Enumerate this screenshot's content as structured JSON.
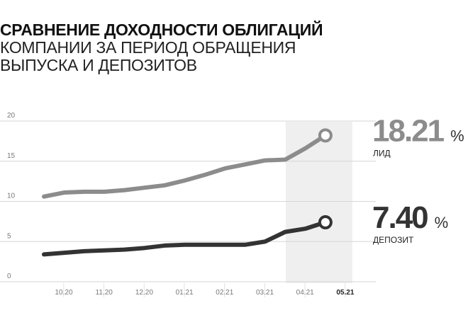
{
  "title": {
    "line1": "СРАВНЕНИЕ ДОХОДНОСТИ ОБЛИГАЦИЙ",
    "line2": "КОМПАНИИ ЗА ПЕРИОД ОБРАЩЕНИЯ",
    "line3": "ВЫПУСКА И ДЕПОЗИТОВ"
  },
  "chart_data": {
    "type": "line",
    "categories": [
      "10.20",
      "11.20",
      "12.20",
      "01.21",
      "02.21",
      "03.21",
      "04.21",
      "05.21"
    ],
    "highlight_category": "05.21",
    "ylim": [
      0,
      20
    ],
    "yticks": [
      0,
      5,
      10,
      15,
      20
    ],
    "ytick_labels": [
      "0",
      "5",
      "10",
      "15",
      "20"
    ],
    "grid": "horizontal",
    "series": [
      {
        "name": "ЛИД",
        "color": "#8c8c8c",
        "x": [
          0,
          0.5,
          1,
          1.5,
          2,
          2.5,
          3,
          3.5,
          4,
          4.5,
          5,
          5.5,
          6,
          6.5,
          7
        ],
        "values": [
          10.6,
          11.1,
          11.2,
          11.2,
          11.4,
          11.7,
          12.0,
          12.6,
          13.3,
          14.1,
          14.6,
          15.1,
          15.2,
          16.6,
          18.21
        ],
        "final_value": "18.21",
        "unit": "%"
      },
      {
        "name": "ДЕПОЗИТ",
        "color": "#333333",
        "x": [
          0,
          0.5,
          1,
          1.5,
          2,
          2.5,
          3,
          3.5,
          4,
          4.5,
          5,
          5.5,
          6,
          6.5,
          7
        ],
        "values": [
          3.4,
          3.6,
          3.8,
          3.9,
          4.0,
          4.2,
          4.5,
          4.6,
          4.6,
          4.6,
          4.6,
          5.0,
          6.2,
          6.6,
          7.4
        ],
        "final_value": "7.40",
        "unit": "%"
      }
    ]
  }
}
